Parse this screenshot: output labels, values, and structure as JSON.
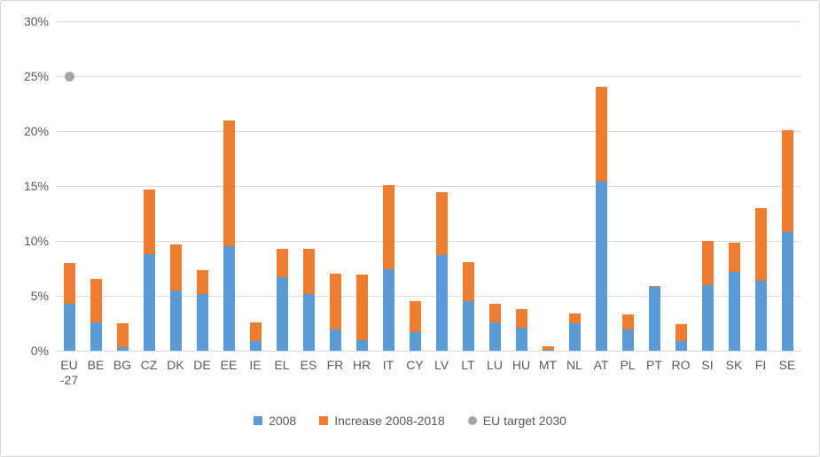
{
  "chart_data": {
    "type": "bar",
    "stacked": true,
    "title": "",
    "xlabel": "",
    "ylabel": "",
    "ylim": [
      0,
      30
    ],
    "ytick_labels": [
      "0%",
      "5%",
      "10%",
      "15%",
      "20%",
      "25%",
      "30%"
    ],
    "grid": true,
    "legend_position": "bottom",
    "categories": [
      "EU -27",
      "BE",
      "BG",
      "CZ",
      "DK",
      "DE",
      "EE",
      "IE",
      "EL",
      "ES",
      "FR",
      "HR",
      "IT",
      "CY",
      "LV",
      "LT",
      "LU",
      "HU",
      "MT",
      "NL",
      "AT",
      "PL",
      "PT",
      "RO",
      "SI",
      "SK",
      "FI",
      "SE"
    ],
    "series": [
      {
        "name": "2008",
        "color": "#5B9BD5",
        "values": [
          4.3,
          2.6,
          0.3,
          8.8,
          5.5,
          5.2,
          9.5,
          0.9,
          6.7,
          5.2,
          1.9,
          1.0,
          7.4,
          1.7,
          8.7,
          4.5,
          2.6,
          2.1,
          0.1,
          2.5,
          15.4,
          1.9,
          5.8,
          0.9,
          6.0,
          7.2,
          6.4,
          10.8
        ]
      },
      {
        "name": "Increase 2008-2018",
        "color": "#ED7D31",
        "values": [
          3.7,
          3.9,
          2.2,
          5.9,
          4.2,
          2.1,
          11.5,
          1.7,
          2.6,
          4.1,
          5.1,
          5.9,
          7.7,
          2.8,
          5.7,
          3.6,
          1.7,
          1.7,
          0.3,
          0.9,
          8.6,
          1.4,
          0.1,
          1.5,
          4.0,
          2.6,
          6.6,
          9.3
        ]
      }
    ],
    "target_marker": {
      "name": "EU target 2030",
      "color": "#A5A5A5",
      "category": "EU -27",
      "value": 25
    }
  },
  "colors": {
    "gridline": "#D9D9D9",
    "axis_text": "#595959",
    "border": "#D7D7D7",
    "background": "#FFFFFF"
  }
}
